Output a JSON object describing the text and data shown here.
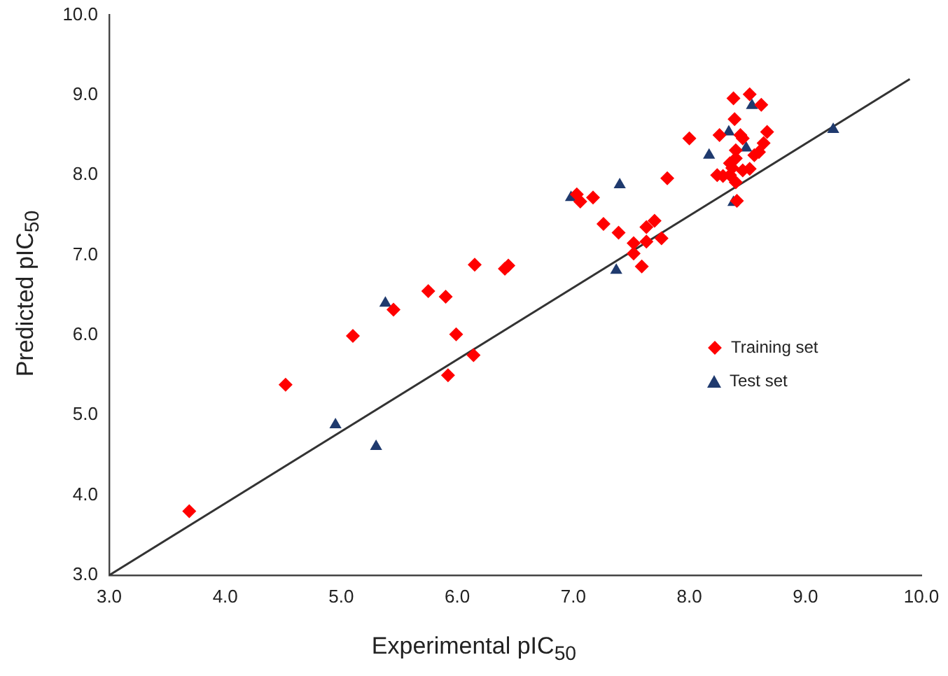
{
  "chart_data": {
    "type": "scatter",
    "xlabel": "Experimental pIC$_{50}$",
    "ylabel": "Predicted pIC$_{50}$",
    "xlim": [
      3,
      10
    ],
    "ylim": [
      3,
      10
    ],
    "xticks": [
      {
        "value": 3,
        "label": "3.0"
      },
      {
        "value": 4,
        "label": "4.0"
      },
      {
        "value": 5,
        "label": "5.0"
      },
      {
        "value": 6,
        "label": "6.0"
      },
      {
        "value": 7,
        "label": "7.0"
      },
      {
        "value": 8,
        "label": "8.0"
      },
      {
        "value": 9,
        "label": "9.0"
      },
      {
        "value": 10,
        "label": "10.0"
      }
    ],
    "yticks": [
      {
        "value": 3,
        "label": "3.0"
      },
      {
        "value": 4,
        "label": "4.0"
      },
      {
        "value": 5,
        "label": "5.0"
      },
      {
        "value": 6,
        "label": "6.0"
      },
      {
        "value": 7,
        "label": "7.0"
      },
      {
        "value": 8,
        "label": "8.0"
      },
      {
        "value": 9,
        "label": "9.0"
      },
      {
        "value": 10,
        "label": "10.0"
      }
    ],
    "grid": false,
    "legend": "right",
    "series": [
      {
        "name": "Training set",
        "marker": "diamond",
        "color": "#ff0000",
        "x": [
          3.69,
          4.52,
          5.1,
          5.45,
          5.75,
          5.9,
          6.15,
          6.41,
          6.44,
          5.99,
          6.14,
          5.92,
          7.03,
          7.06,
          7.17,
          7.26,
          7.39,
          7.59,
          7.52,
          7.52,
          7.63,
          7.63,
          7.7,
          7.76,
          7.81,
          8.0,
          8.26,
          8.24,
          8.29,
          8.38,
          8.52,
          8.62,
          8.39,
          8.44,
          8.46,
          8.67,
          8.64,
          8.6,
          8.56,
          8.52,
          8.46,
          8.4,
          8.35,
          8.37,
          8.4,
          8.4,
          8.35,
          8.41
        ],
        "values": [
          3.8,
          5.38,
          5.99,
          6.32,
          6.55,
          6.48,
          6.88,
          6.83,
          6.87,
          6.01,
          5.75,
          5.5,
          7.76,
          7.67,
          7.72,
          7.39,
          7.28,
          6.86,
          7.02,
          7.15,
          7.17,
          7.35,
          7.43,
          7.21,
          7.96,
          8.46,
          8.5,
          8.0,
          7.99,
          8.96,
          9.01,
          8.88,
          8.7,
          8.5,
          8.46,
          8.54,
          8.4,
          8.29,
          8.25,
          8.08,
          8.06,
          8.21,
          8.15,
          8.09,
          8.31,
          7.91,
          8.0,
          7.68
        ]
      },
      {
        "name": "Test set",
        "marker": "triangle",
        "color": "#1f3a6e",
        "x": [
          5.38,
          4.95,
          5.3,
          6.98,
          7.4,
          7.37,
          8.17,
          8.54,
          8.34,
          8.49,
          8.38,
          9.24
        ],
        "values": [
          6.4,
          4.88,
          4.61,
          7.72,
          7.88,
          6.81,
          8.25,
          8.87,
          8.54,
          8.34,
          7.66,
          8.57
        ]
      },
      {
        "type": "line",
        "marker": "none",
        "line_style": "solid",
        "color": "#333333",
        "x": [
          3.0,
          9.9
        ],
        "values": [
          3.0,
          9.2
        ]
      }
    ]
  }
}
